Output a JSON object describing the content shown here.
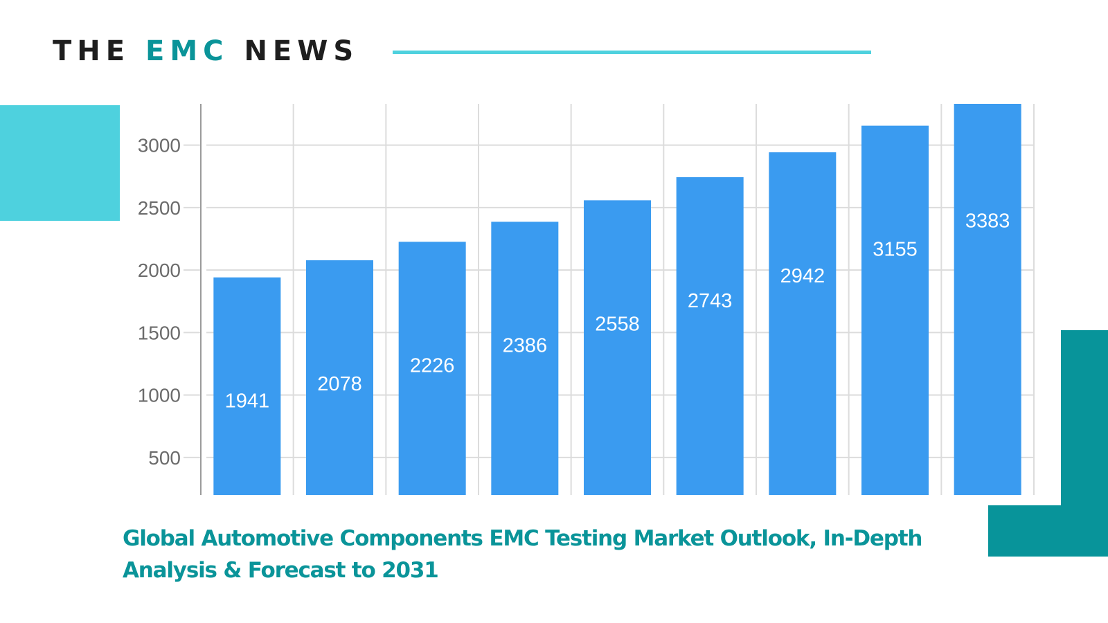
{
  "header": {
    "brand_prefix": "THE",
    "brand_accent": "EMC",
    "brand_suffix": "NEWS"
  },
  "colors": {
    "brand_dark": "#1e1e1e",
    "brand_teal": "#0a9499",
    "light_cyan": "#4ed1de",
    "bar_blue": "#3a9bf0"
  },
  "caption": {
    "line1": "Global Automotive Components EMC Testing Market Outlook, In-Depth",
    "line2": "Analysis & Forecast to 2031"
  },
  "chart_data": {
    "type": "bar",
    "title": "Global Automotive Components EMC Testing Market Outlook, In-Depth Analysis & Forecast to 2031",
    "xlabel": "",
    "ylabel": "",
    "categories": [
      "",
      "",
      "",
      "",
      "",
      "",
      "",
      "",
      ""
    ],
    "values": [
      1941,
      2078,
      2226,
      2386,
      2558,
      2743,
      2942,
      3155,
      3383
    ],
    "data_labels": [
      "1941",
      "2078",
      "2226",
      "2386",
      "2558",
      "2743",
      "2942",
      "3155",
      "3383"
    ],
    "yticks": [
      500,
      1000,
      1500,
      2000,
      2500,
      3000
    ],
    "ytick_labels": [
      "500",
      "1000",
      "1500",
      "2000",
      "2500",
      "3000"
    ],
    "ylim": [
      200,
      3330
    ],
    "grid": true,
    "legend": "none"
  }
}
